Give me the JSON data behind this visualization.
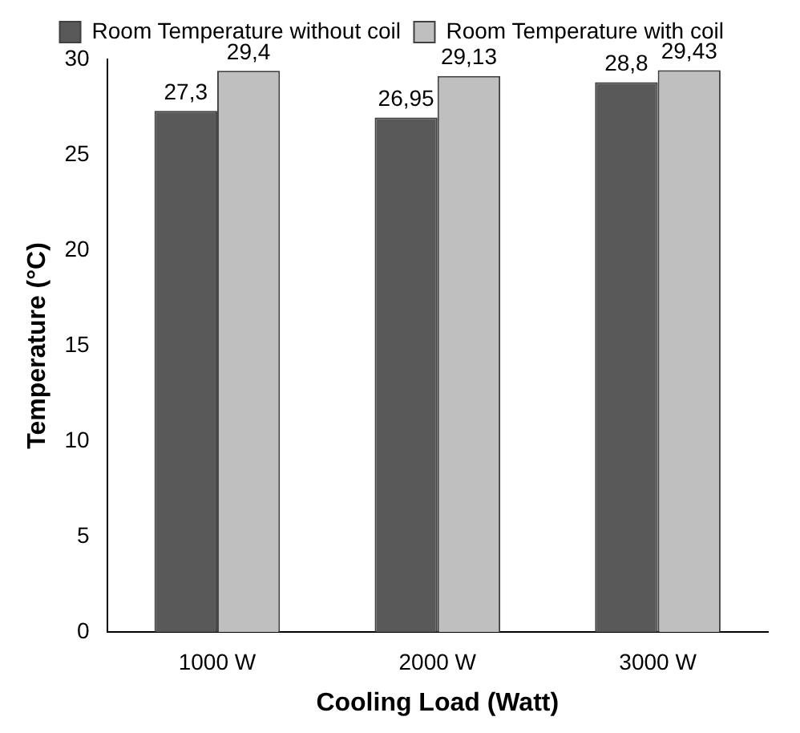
{
  "chart_data": {
    "type": "bar",
    "xlabel": "Cooling Load (Watt)",
    "ylabel": "Temperature (°C)",
    "categories": [
      "1000 W",
      "2000 W",
      "3000 W"
    ],
    "series": [
      {
        "name": "Room Temperature without coil",
        "color": "#595959",
        "values": [
          27.3,
          26.95,
          28.8
        ],
        "value_labels": [
          "27,3",
          "26,95",
          "28,8"
        ]
      },
      {
        "name": "Room Temperature with coil",
        "color": "#bfbfbf",
        "values": [
          29.4,
          29.13,
          29.43
        ],
        "value_labels": [
          "29,4",
          "29,13",
          "29,43"
        ]
      }
    ],
    "ylim": [
      0,
      30
    ],
    "yticks": [
      0,
      5,
      10,
      15,
      20,
      25,
      30
    ],
    "grid": false,
    "legend": "top"
  }
}
